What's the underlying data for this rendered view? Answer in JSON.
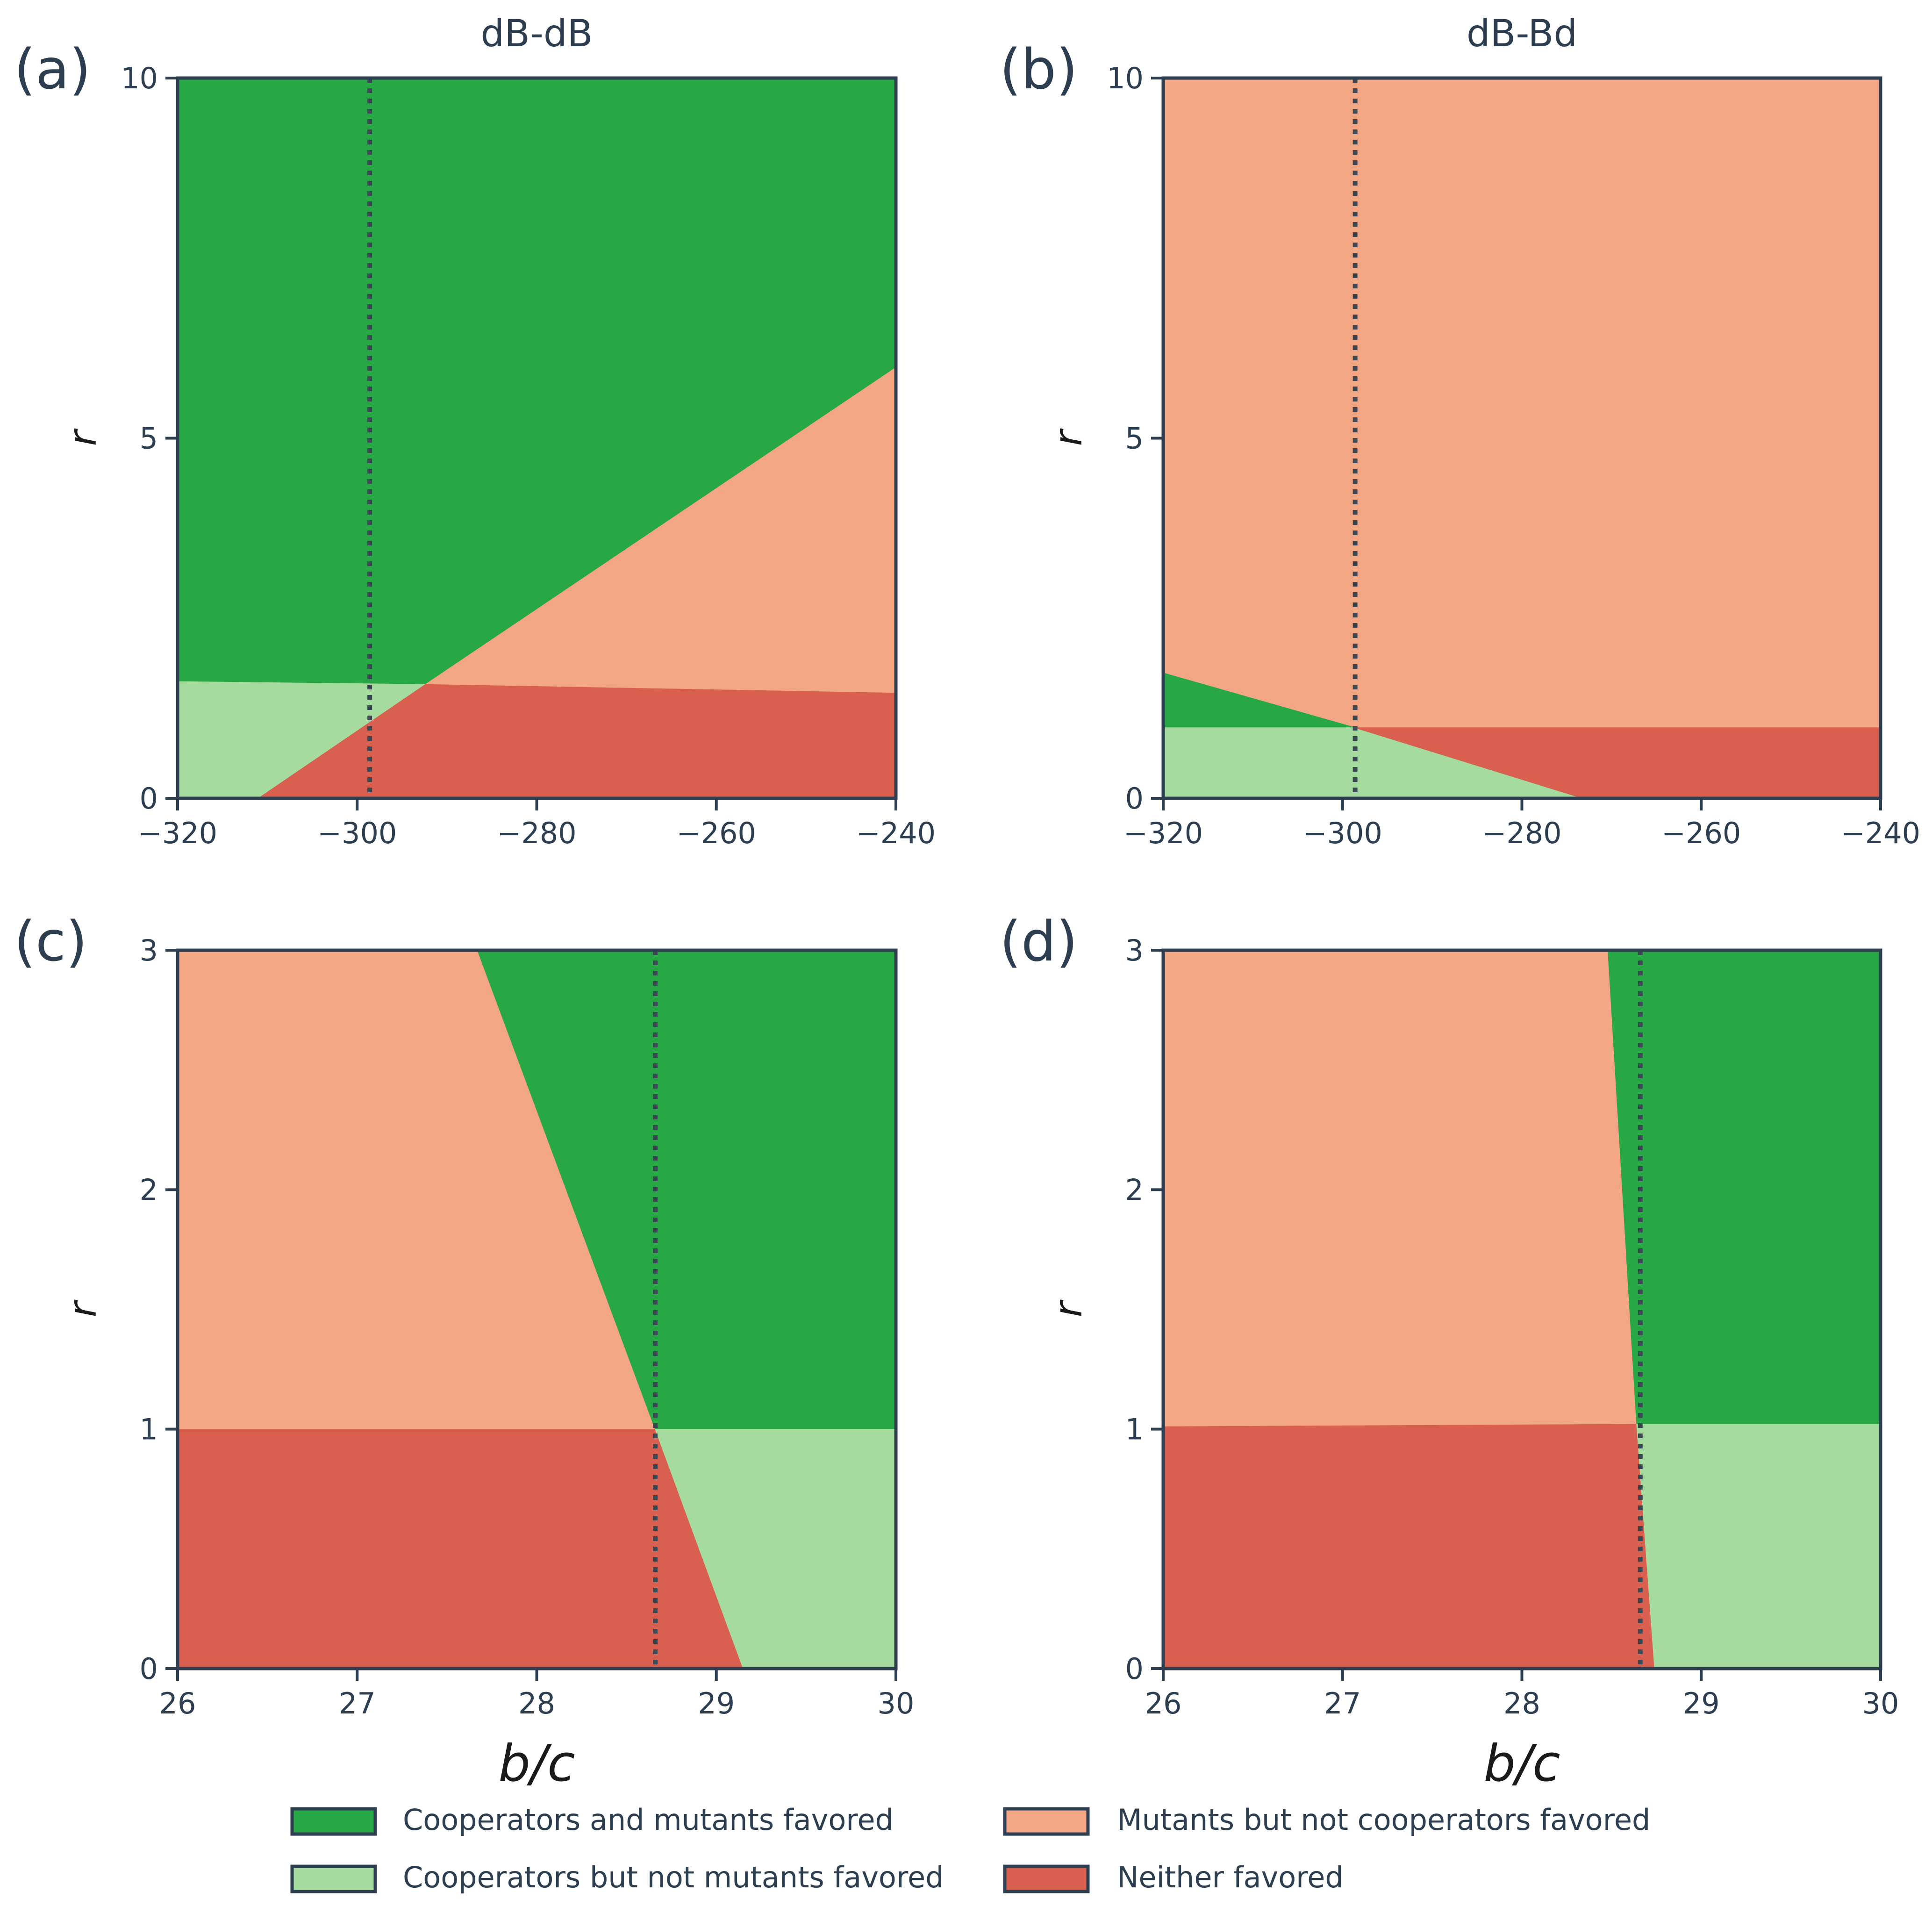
{
  "colors": {
    "green_dark": "#28a745",
    "green_light": "#a6dba0",
    "salmon": "#f3a683",
    "red": "#d95f4e",
    "frame": "#2c3e50"
  },
  "legend": {
    "items": [
      {
        "label": "Cooperators and mutants favored",
        "color_key": "green_dark"
      },
      {
        "label": "Mutants but not cooperators favored",
        "color_key": "salmon"
      },
      {
        "label": "Cooperators but not mutants favored",
        "color_key": "green_light"
      },
      {
        "label": "Neither favored",
        "color_key": "red"
      }
    ]
  },
  "chart_data": [
    {
      "panel": "(a)",
      "title": "dB-dB",
      "type": "area",
      "xlabel": "",
      "ylabel": "r",
      "xlim": [
        -320,
        -240
      ],
      "ylim": [
        0,
        10
      ],
      "xticks": [
        -320,
        -300,
        -280,
        -260,
        -240
      ],
      "xtick_labels": [
        "−320",
        "−300",
        "−280",
        "−260",
        "−240"
      ],
      "yticks": [
        0,
        5,
        10
      ],
      "ytick_labels": [
        "0",
        "5",
        "10"
      ],
      "dotted_x": -298.6,
      "regions": [
        {
          "category": "green_dark",
          "points": [
            [
              -320,
              10
            ],
            [
              -240,
              10
            ],
            [
              -240,
              5.98
            ],
            [
              -292.4,
              1.58
            ],
            [
              -320,
              1.62
            ]
          ]
        },
        {
          "category": "salmon",
          "points": [
            [
              -292.4,
              1.58
            ],
            [
              -240,
              5.98
            ],
            [
              -240,
              1.46
            ]
          ]
        },
        {
          "category": "green_light",
          "points": [
            [
              -320,
              1.62
            ],
            [
              -292.4,
              1.58
            ],
            [
              -311,
              0
            ],
            [
              -320,
              0
            ]
          ]
        },
        {
          "category": "red",
          "points": [
            [
              -311,
              0
            ],
            [
              -292.4,
              1.58
            ],
            [
              -240,
              1.46
            ],
            [
              -240,
              0
            ]
          ]
        }
      ]
    },
    {
      "panel": "(b)",
      "title": "dB-Bd",
      "type": "area",
      "xlabel": "",
      "ylabel": "r",
      "xlim": [
        -320,
        -240
      ],
      "ylim": [
        0,
        10
      ],
      "xticks": [
        -320,
        -300,
        -280,
        -260,
        -240
      ],
      "xtick_labels": [
        "−320",
        "−300",
        "−280",
        "−260",
        "−240"
      ],
      "yticks": [
        0,
        5,
        10
      ],
      "ytick_labels": [
        "0",
        "5",
        "10"
      ],
      "dotted_x": -298.6,
      "regions": [
        {
          "category": "salmon",
          "points": [
            [
              -320,
              10
            ],
            [
              -240,
              10
            ],
            [
              -240,
              0.98
            ],
            [
              -298.6,
              0.98
            ],
            [
              -320,
              1.74
            ]
          ]
        },
        {
          "category": "green_dark",
          "points": [
            [
              -320,
              1.74
            ],
            [
              -298.6,
              0.98
            ],
            [
              -320,
              0.98
            ]
          ]
        },
        {
          "category": "green_light",
          "points": [
            [
              -320,
              0.98
            ],
            [
              -298.6,
              0.98
            ],
            [
              -273.2,
              0
            ],
            [
              -320,
              0
            ]
          ]
        },
        {
          "category": "red",
          "points": [
            [
              -298.6,
              0.98
            ],
            [
              -240,
              0.98
            ],
            [
              -240,
              0
            ],
            [
              -273.2,
              0
            ]
          ]
        }
      ]
    },
    {
      "panel": "(c)",
      "title": "",
      "type": "area",
      "xlabel": "b/c",
      "ylabel": "r",
      "xlim": [
        26,
        30
      ],
      "ylim": [
        0,
        3
      ],
      "xticks": [
        26,
        27,
        28,
        29,
        30
      ],
      "xtick_labels": [
        "26",
        "27",
        "28",
        "29",
        "30"
      ],
      "yticks": [
        0,
        1,
        2,
        3
      ],
      "ytick_labels": [
        "0",
        "1",
        "2",
        "3"
      ],
      "dotted_x": 28.66,
      "regions": [
        {
          "category": "salmon",
          "points": [
            [
              26,
              3
            ],
            [
              27.67,
              3
            ],
            [
              28.66,
              1
            ],
            [
              26,
              1
            ]
          ]
        },
        {
          "category": "green_dark",
          "points": [
            [
              27.67,
              3
            ],
            [
              30,
              3
            ],
            [
              30,
              1
            ],
            [
              28.66,
              1
            ]
          ]
        },
        {
          "category": "red",
          "points": [
            [
              26,
              1
            ],
            [
              28.66,
              1
            ],
            [
              29.15,
              0
            ],
            [
              26,
              0
            ]
          ]
        },
        {
          "category": "green_light",
          "points": [
            [
              28.66,
              1
            ],
            [
              30,
              1
            ],
            [
              30,
              0
            ],
            [
              29.15,
              0
            ]
          ]
        }
      ]
    },
    {
      "panel": "(d)",
      "title": "",
      "type": "area",
      "xlabel": "b/c",
      "ylabel": "r",
      "xlim": [
        26,
        30
      ],
      "ylim": [
        0,
        3
      ],
      "xticks": [
        26,
        27,
        28,
        29,
        30
      ],
      "xtick_labels": [
        "26",
        "27",
        "28",
        "29",
        "30"
      ],
      "yticks": [
        0,
        1,
        2,
        3
      ],
      "ytick_labels": [
        "0",
        "1",
        "2",
        "3"
      ],
      "dotted_x": 28.66,
      "regions": [
        {
          "category": "salmon",
          "points": [
            [
              26,
              3
            ],
            [
              28.48,
              3
            ],
            [
              28.64,
              1.02
            ],
            [
              26,
              1.01
            ]
          ]
        },
        {
          "category": "green_dark",
          "points": [
            [
              28.48,
              3
            ],
            [
              30,
              3
            ],
            [
              30,
              1.02
            ],
            [
              28.64,
              1.02
            ]
          ]
        },
        {
          "category": "red",
          "points": [
            [
              26,
              1.01
            ],
            [
              28.64,
              1.02
            ],
            [
              28.74,
              0
            ],
            [
              26,
              0
            ]
          ]
        },
        {
          "category": "green_light",
          "points": [
            [
              28.64,
              1.02
            ],
            [
              30,
              1.02
            ],
            [
              30,
              0
            ],
            [
              28.74,
              0
            ]
          ]
        }
      ]
    }
  ]
}
